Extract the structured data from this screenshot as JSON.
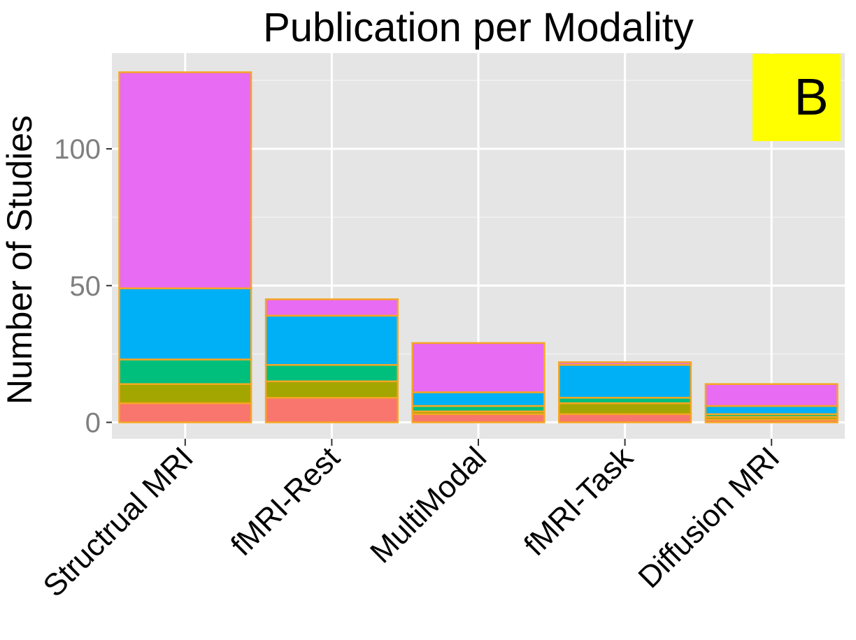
{
  "chart_data": {
    "type": "bar",
    "stacked": true,
    "title": "Publication per Modality",
    "xlabel": "",
    "ylabel": "Number of Studies",
    "ylim": [
      -6,
      135
    ],
    "yticks": [
      0,
      50,
      100
    ],
    "grid": true,
    "legend": "none",
    "panel_label": "B",
    "panel_label_bg": "#ffff00",
    "bar_outline_color": "#f5a623",
    "panel_bg": "#e5e5e5",
    "categories": [
      "Structrual MRI",
      "fMRI-Rest",
      "MultiModal",
      "fMRI-Task",
      "Diffusion MRI"
    ],
    "series": [
      {
        "color": "#f8766d",
        "values": [
          7,
          9,
          3,
          3,
          1
        ]
      },
      {
        "color": "#a3a500",
        "values": [
          7,
          6,
          1,
          4,
          1
        ]
      },
      {
        "color": "#00bf7d",
        "values": [
          9,
          6,
          2,
          2,
          1
        ]
      },
      {
        "color": "#00b0f6",
        "values": [
          26,
          18,
          5,
          12,
          3
        ]
      },
      {
        "color": "#e76bf3",
        "values": [
          79,
          6,
          18,
          1,
          8
        ]
      }
    ]
  }
}
